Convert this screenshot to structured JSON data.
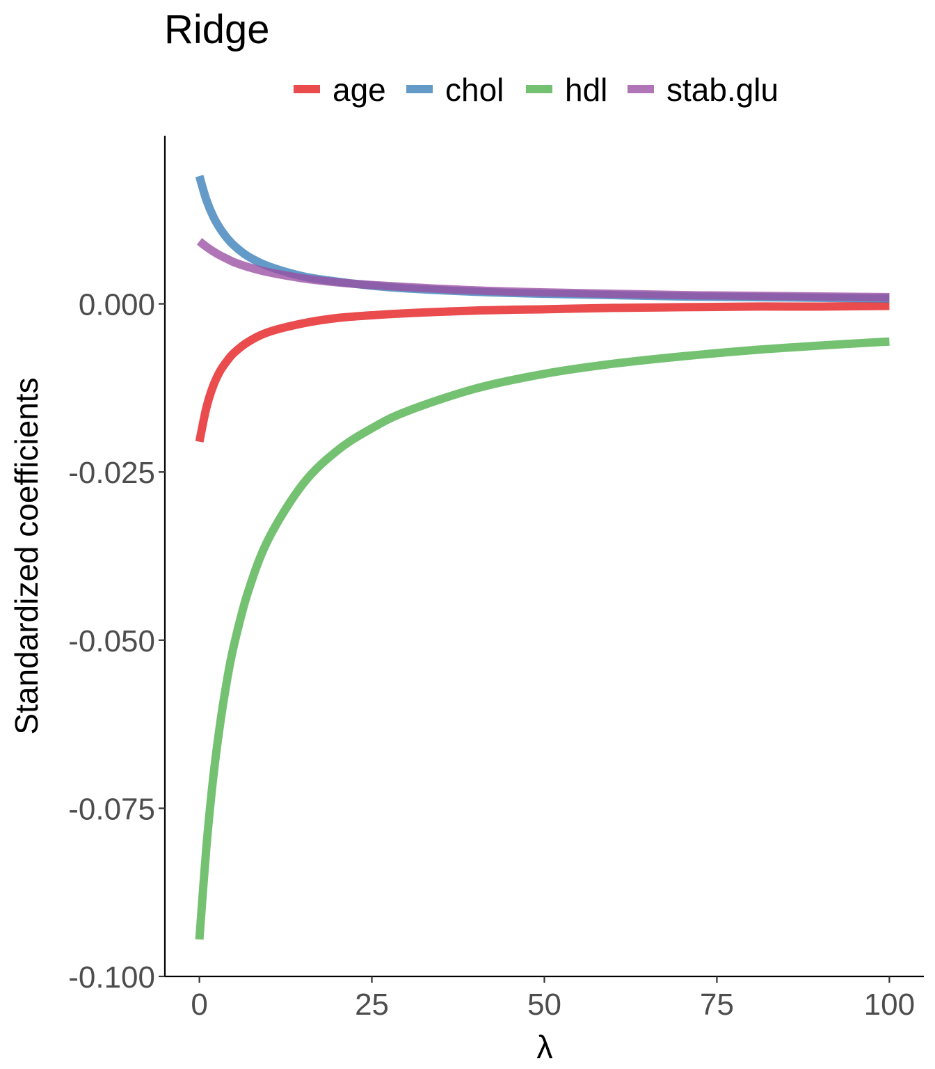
{
  "chart_data": {
    "type": "line",
    "title": "Ridge",
    "xlabel": "λ",
    "ylabel": "Standardized coefficients",
    "xlim": [
      -5,
      105
    ],
    "ylim": [
      -0.1,
      0.025
    ],
    "x_ticks": [
      0,
      25,
      50,
      75,
      100
    ],
    "x_tick_labels": [
      "0",
      "25",
      "50",
      "75",
      "100"
    ],
    "y_ticks": [
      0.0,
      -0.025,
      -0.05,
      -0.075,
      -0.1
    ],
    "y_tick_labels": [
      "0.000",
      "-0.025",
      "-0.050",
      "-0.075",
      "-0.100"
    ],
    "grid": false,
    "legend_position": "top",
    "x": [
      0,
      1,
      2,
      3,
      4,
      5,
      7,
      10,
      15,
      20,
      25,
      30,
      40,
      50,
      60,
      70,
      80,
      90,
      100
    ],
    "series": [
      {
        "name": "age",
        "color": "#e41a1c",
        "values": [
          -0.0205,
          -0.0155,
          -0.0122,
          -0.01,
          -0.0085,
          -0.0073,
          -0.0057,
          -0.0042,
          -0.0029,
          -0.0021,
          -0.0017,
          -0.0014,
          -0.001,
          -0.0008,
          -0.0006,
          -0.0005,
          -0.0004,
          -0.0004,
          -0.0003
        ]
      },
      {
        "name": "chol",
        "color": "#377eb8",
        "values": [
          0.019,
          0.0155,
          0.013,
          0.0112,
          0.0098,
          0.0087,
          0.0071,
          0.0056,
          0.0041,
          0.0033,
          0.0027,
          0.0023,
          0.0018,
          0.0015,
          0.0013,
          0.0011,
          0.001,
          0.0009,
          0.0008
        ]
      },
      {
        "name": "hdl",
        "color": "#4daf4a",
        "values": [
          -0.0945,
          -0.081,
          -0.0705,
          -0.0625,
          -0.056,
          -0.0508,
          -0.043,
          -0.035,
          -0.0268,
          -0.0218,
          -0.0185,
          -0.016,
          -0.0126,
          -0.0104,
          -0.0089,
          -0.0078,
          -0.0069,
          -0.0062,
          -0.0056
        ]
      },
      {
        "name": "stab.glu",
        "color": "#984ea3",
        "values": [
          0.0093,
          0.0085,
          0.0078,
          0.0072,
          0.0067,
          0.0062,
          0.0055,
          0.0047,
          0.0038,
          0.0032,
          0.0028,
          0.0025,
          0.002,
          0.0017,
          0.0015,
          0.0013,
          0.0012,
          0.0011,
          0.001
        ]
      }
    ]
  }
}
